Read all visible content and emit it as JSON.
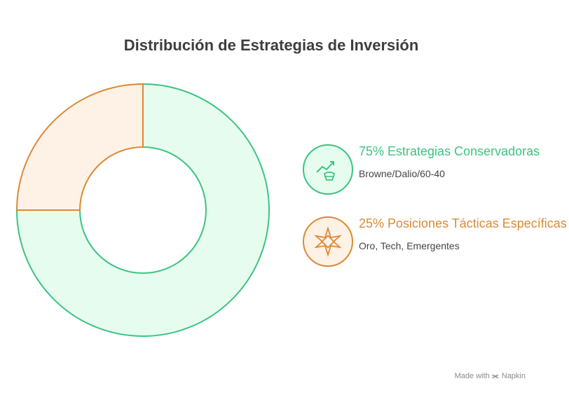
{
  "chart_data": {
    "type": "pie",
    "title": "Distribución de Estrategias de Inversión",
    "slices": [
      {
        "label": "75% Estrategias Conservadoras",
        "value": 75,
        "description": "Browne/Dalio/60-40",
        "fill": "#e6fcee",
        "stroke": "#3cc481",
        "icon": "growth-chart-bull-icon"
      },
      {
        "label": "25% Posiciones Tácticas Específicas",
        "value": 25,
        "description": "Oro, Tech, Emergentes",
        "fill": "#fef1e5",
        "stroke": "#db8a35",
        "icon": "compass-star-icon"
      }
    ]
  },
  "footer": {
    "made_with": "Made with",
    "brand": "Napkin"
  }
}
